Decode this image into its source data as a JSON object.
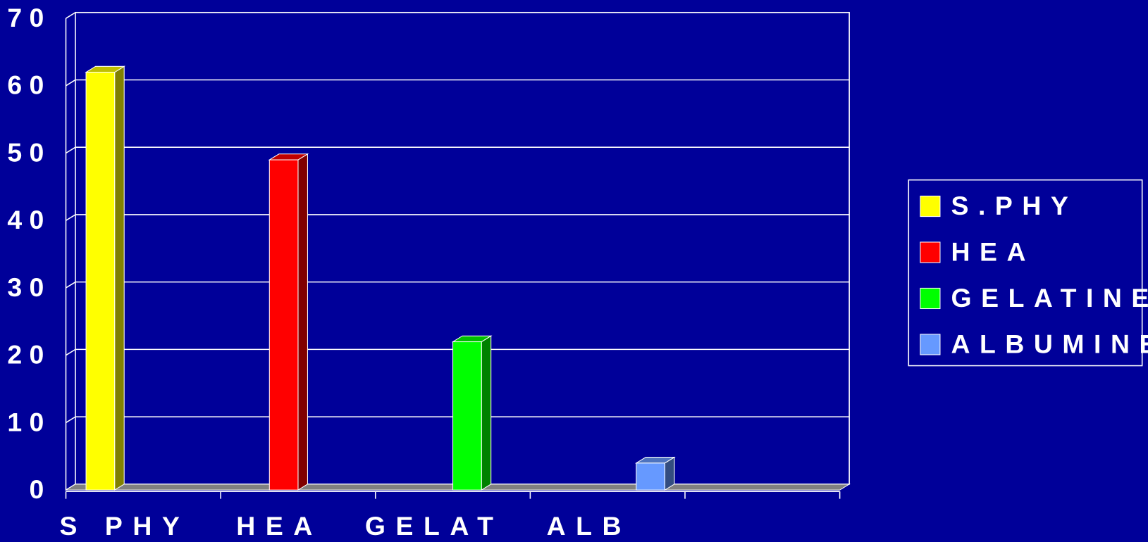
{
  "chart_data": {
    "type": "bar",
    "categories": [
      "S PHY",
      "HEA",
      "GELAT",
      "ALB",
      null
    ],
    "series": [
      {
        "name": "S.PHY",
        "color": "#ffff00",
        "values": [
          62,
          null,
          null,
          null,
          null
        ]
      },
      {
        "name": "HEA",
        "color": "#ff0000",
        "values": [
          null,
          49,
          null,
          null,
          null
        ]
      },
      {
        "name": "GELATINE",
        "color": "#00ff00",
        "values": [
          null,
          null,
          22,
          null,
          null
        ]
      },
      {
        "name": "ALBUMINE",
        "color": "#6699ff",
        "values": [
          null,
          null,
          null,
          4,
          null
        ]
      }
    ],
    "ylim": [
      0,
      70
    ],
    "yticks": [
      0,
      10,
      20,
      30,
      40,
      50,
      60,
      70
    ],
    "grid": true,
    "legend": "right"
  }
}
